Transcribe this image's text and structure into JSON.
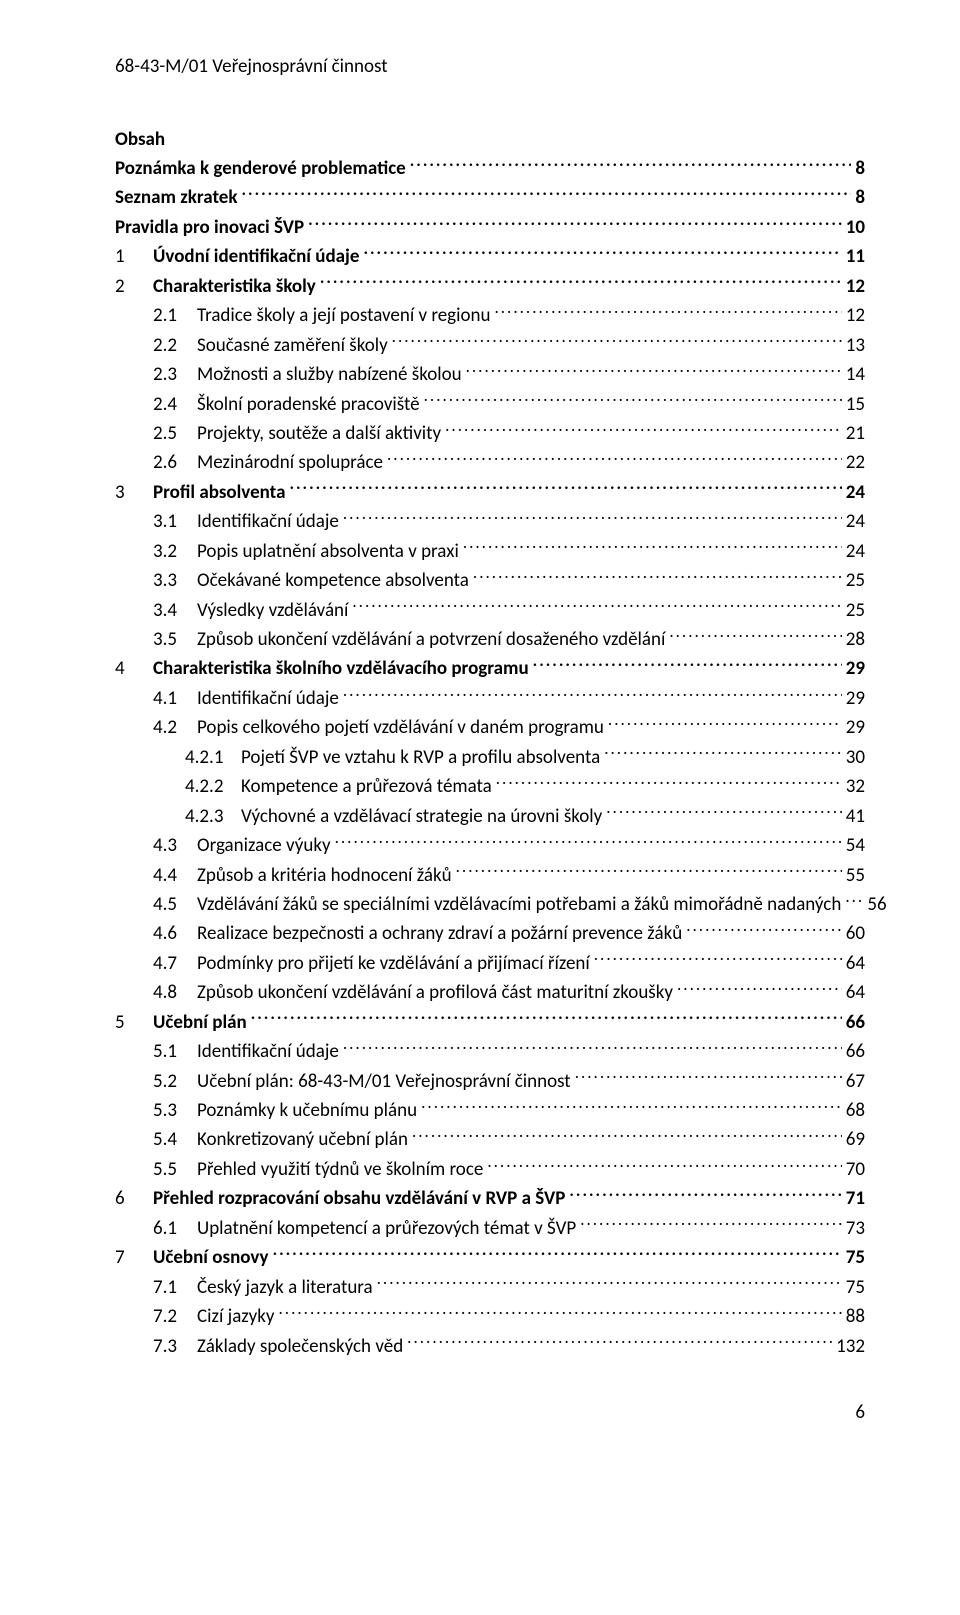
{
  "header": "68-43-M/01 Veřejnosprávní činnost",
  "obsah_title": "Obsah",
  "toc": [
    {
      "num": "",
      "label": "Poznámka k genderové problematice",
      "page": "8",
      "bold": true,
      "indent": 0,
      "noNum": true
    },
    {
      "num": "",
      "label": "Seznam zkratek",
      "page": "8",
      "bold": true,
      "indent": 0,
      "noNum": true
    },
    {
      "num": "",
      "label": "Pravidla pro inovaci ŠVP",
      "page": "10",
      "bold": true,
      "indent": 0,
      "noNum": true
    },
    {
      "num": "1",
      "label": "Úvodní identifikační údaje",
      "page": "11",
      "bold": true,
      "indent": 0
    },
    {
      "num": "2",
      "label": "Charakteristika školy",
      "page": "12",
      "bold": true,
      "indent": 0
    },
    {
      "num": "2.1",
      "label": "Tradice školy a její postavení v regionu",
      "page": "12",
      "bold": false,
      "indent": 1
    },
    {
      "num": "2.2",
      "label": "Současné zaměření školy",
      "page": "13",
      "bold": false,
      "indent": 1
    },
    {
      "num": "2.3",
      "label": "Možnosti a služby nabízené školou",
      "page": "14",
      "bold": false,
      "indent": 1
    },
    {
      "num": "2.4",
      "label": "Školní poradenské pracoviště",
      "page": "15",
      "bold": false,
      "indent": 1
    },
    {
      "num": "2.5",
      "label": "Projekty, soutěže a další aktivity",
      "page": "21",
      "bold": false,
      "indent": 1
    },
    {
      "num": "2.6",
      "label": "Mezinárodní spolupráce",
      "page": "22",
      "bold": false,
      "indent": 1
    },
    {
      "num": "3",
      "label": "Profil absolventa",
      "page": "24",
      "bold": true,
      "indent": 0
    },
    {
      "num": "3.1",
      "label": "Identifikační údaje",
      "page": "24",
      "bold": false,
      "indent": 1
    },
    {
      "num": "3.2",
      "label": "Popis uplatnění absolventa v praxi",
      "page": "24",
      "bold": false,
      "indent": 1
    },
    {
      "num": "3.3",
      "label": "Očekávané kompetence absolventa",
      "page": "25",
      "bold": false,
      "indent": 1
    },
    {
      "num": "3.4",
      "label": "Výsledky vzdělávání",
      "page": "25",
      "bold": false,
      "indent": 1
    },
    {
      "num": "3.5",
      "label": "Způsob ukončení vzdělávání a potvrzení dosaženého vzdělání",
      "page": "28",
      "bold": false,
      "indent": 1
    },
    {
      "num": "4",
      "label": "Charakteristika školního vzdělávacího programu",
      "page": "29",
      "bold": true,
      "indent": 0
    },
    {
      "num": "4.1",
      "label": "Identifikační údaje",
      "page": "29",
      "bold": false,
      "indent": 1
    },
    {
      "num": "4.2",
      "label": "Popis celkového pojetí vzdělávání v daném programu",
      "page": "29",
      "bold": false,
      "indent": 1
    },
    {
      "num": "4.2.1",
      "label": "Pojetí ŠVP ve vztahu k RVP a profilu absolventa",
      "page": "30",
      "bold": false,
      "indent": 2
    },
    {
      "num": "4.2.2",
      "label": "Kompetence a průřezová témata",
      "page": "32",
      "bold": false,
      "indent": 2
    },
    {
      "num": "4.2.3",
      "label": "Výchovné a vzdělávací strategie na úrovni školy",
      "page": "41",
      "bold": false,
      "indent": 2
    },
    {
      "num": "4.3",
      "label": "Organizace výuky",
      "page": "54",
      "bold": false,
      "indent": 1
    },
    {
      "num": "4.4",
      "label": "Způsob a kritéria hodnocení žáků",
      "page": "55",
      "bold": false,
      "indent": 1
    },
    {
      "num": "4.5",
      "label": "Vzdělávání žáků se speciálními vzdělávacími potřebami a žáků mimořádně nadaných",
      "page": "56",
      "bold": false,
      "indent": 1,
      "tightLeader": true
    },
    {
      "num": "4.6",
      "label": "Realizace bezpečnosti a ochrany zdraví a požární prevence žáků",
      "page": "60",
      "bold": false,
      "indent": 1
    },
    {
      "num": "4.7",
      "label": "Podmínky pro přijetí ke vzdělávání a přijímací řízení",
      "page": "64",
      "bold": false,
      "indent": 1
    },
    {
      "num": "4.8",
      "label": "Způsob ukončení vzdělávání a profilová část maturitní zkoušky",
      "page": "64",
      "bold": false,
      "indent": 1
    },
    {
      "num": "5",
      "label": "Učební plán",
      "page": "66",
      "bold": true,
      "indent": 0
    },
    {
      "num": "5.1",
      "label": "Identifikační údaje",
      "page": "66",
      "bold": false,
      "indent": 1
    },
    {
      "num": "5.2",
      "label": "Učební plán: 68-43-M/01 Veřejnosprávní činnost",
      "page": "67",
      "bold": false,
      "indent": 1
    },
    {
      "num": "5.3",
      "label": "Poznámky k učebnímu plánu",
      "page": "68",
      "bold": false,
      "indent": 1
    },
    {
      "num": "5.4",
      "label": "Konkretizovaný učební plán",
      "page": "69",
      "bold": false,
      "indent": 1
    },
    {
      "num": "5.5",
      "label": "Přehled využití týdnů ve školním roce",
      "page": "70",
      "bold": false,
      "indent": 1
    },
    {
      "num": "6",
      "label": "Přehled rozpracování obsahu vzdělávání v RVP a ŠVP",
      "page": "71",
      "bold": true,
      "indent": 0
    },
    {
      "num": "6.1",
      "label": "Uplatnění kompetencí a průřezových témat v ŠVP",
      "page": "73",
      "bold": false,
      "indent": 1
    },
    {
      "num": "7",
      "label": "Učební osnovy",
      "page": "75",
      "bold": true,
      "indent": 0
    },
    {
      "num": "7.1",
      "label": "Český jazyk a literatura",
      "page": "75",
      "bold": false,
      "indent": 1
    },
    {
      "num": "7.2",
      "label": "Cizí jazyky",
      "page": "88",
      "bold": false,
      "indent": 1
    },
    {
      "num": "7.3",
      "label": "Základy společenských věd",
      "page": "132",
      "bold": false,
      "indent": 1
    }
  ],
  "footer_page": "6"
}
